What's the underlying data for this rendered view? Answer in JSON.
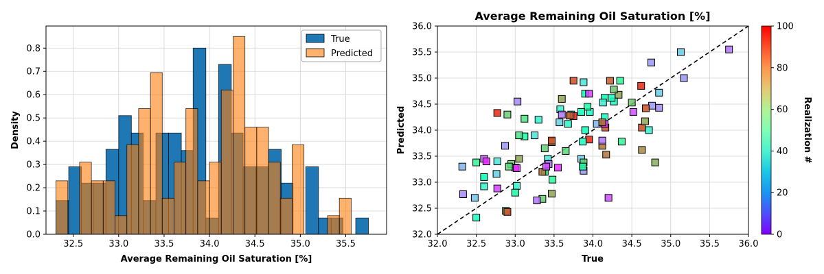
{
  "chart_data": [
    {
      "type": "histogram",
      "xlabel": "Average Remaining Oil Saturation [%]",
      "ylabel": "Density",
      "xlim": [
        32.2,
        35.95
      ],
      "ylim": [
        0,
        0.895
      ],
      "xticks": [
        "32.5",
        "33.0",
        "33.5",
        "34.0",
        "34.5",
        "35.0",
        "35.5"
      ],
      "yticks": [
        "0.0",
        "0.1",
        "0.2",
        "0.3",
        "0.4",
        "0.5",
        "0.6",
        "0.7",
        "0.8"
      ],
      "grid": true,
      "legend_position": "upper right",
      "series": [
        {
          "name": "True",
          "color": "#1f77b4",
          "bins": [
            [
              32.31,
              32.45,
              0.145
            ],
            [
              32.45,
              32.59,
              0.29
            ],
            [
              32.59,
              32.72,
              0.22
            ],
            [
              32.72,
              32.86,
              0.22
            ],
            [
              32.86,
              33.0,
              0.365
            ],
            [
              33.0,
              33.14,
              0.51
            ],
            [
              33.14,
              33.27,
              0.435
            ],
            [
              33.27,
              33.41,
              0.145
            ],
            [
              33.41,
              33.55,
              0.435
            ],
            [
              33.55,
              33.69,
              0.435
            ],
            [
              33.69,
              33.82,
              0.36
            ],
            [
              33.82,
              33.96,
              0.8
            ],
            [
              33.96,
              34.1,
              0.07
            ],
            [
              34.1,
              34.24,
              0.73
            ],
            [
              34.24,
              34.37,
              0.435
            ],
            [
              34.37,
              34.51,
              0.29
            ],
            [
              34.51,
              34.65,
              0.29
            ],
            [
              34.65,
              34.79,
              0.365
            ],
            [
              34.79,
              34.92,
              0.22
            ],
            [
              34.92,
              35.06,
              0.0
            ],
            [
              35.06,
              35.2,
              0.29
            ],
            [
              35.2,
              35.34,
              0.07
            ],
            [
              35.34,
              35.47,
              0.07
            ],
            [
              35.47,
              35.61,
              0.0
            ],
            [
              35.61,
              35.75,
              0.07
            ]
          ]
        },
        {
          "name": "Predicted",
          "color": "#ff7f0e",
          "bins": [
            [
              32.31,
              32.44,
              0.23
            ],
            [
              32.44,
              32.57,
              0.0
            ],
            [
              32.57,
              32.7,
              0.31
            ],
            [
              32.7,
              32.83,
              0.23
            ],
            [
              32.83,
              32.96,
              0.23
            ],
            [
              32.96,
              33.09,
              0.08
            ],
            [
              33.09,
              33.22,
              0.385
            ],
            [
              33.22,
              33.35,
              0.54
            ],
            [
              33.35,
              33.48,
              0.695
            ],
            [
              33.48,
              33.61,
              0.155
            ],
            [
              33.61,
              33.74,
              0.31
            ],
            [
              33.74,
              33.87,
              0.54
            ],
            [
              33.87,
              34.0,
              0.23
            ],
            [
              34.0,
              34.13,
              0.31
            ],
            [
              34.13,
              34.26,
              0.62
            ],
            [
              34.26,
              34.39,
              0.85
            ],
            [
              34.39,
              34.52,
              0.46
            ],
            [
              34.52,
              34.65,
              0.46
            ],
            [
              34.65,
              34.78,
              0.31
            ],
            [
              34.78,
              34.91,
              0.155
            ],
            [
              34.91,
              35.04,
              0.385
            ],
            [
              35.04,
              35.17,
              0.0
            ],
            [
              35.17,
              35.3,
              0.0
            ],
            [
              35.3,
              35.43,
              0.08
            ],
            [
              35.43,
              35.56,
              0.155
            ]
          ]
        }
      ]
    },
    {
      "type": "scatter",
      "title": "Average Remaining Oil Saturation [%]",
      "xlabel": "True",
      "ylabel": "Predicted",
      "xlim": [
        32.0,
        36.0
      ],
      "ylim": [
        32.0,
        36.0
      ],
      "xticks": [
        "32.0",
        "32.5",
        "33.0",
        "33.5",
        "34.0",
        "34.5",
        "35.0",
        "35.5",
        "36.0"
      ],
      "yticks": [
        "32.0",
        "32.5",
        "33.0",
        "33.5",
        "34.0",
        "34.5",
        "35.0",
        "35.5",
        "36.0"
      ],
      "grid": true,
      "reference_line": "y = x",
      "colorbar": {
        "label": "Realization #",
        "range": [
          0,
          100
        ],
        "ticks": [
          "0",
          "20",
          "40",
          "60",
          "80",
          "100"
        ],
        "colormap": "rainbow"
      },
      "points": [
        [
          35.75,
          35.55,
          15
        ],
        [
          35.13,
          35.5,
          30
        ],
        [
          34.75,
          35.3,
          20
        ],
        [
          35.17,
          35.0,
          20
        ],
        [
          34.85,
          34.72,
          30
        ],
        [
          34.85,
          34.43,
          18
        ],
        [
          34.76,
          34.47,
          20
        ],
        [
          34.52,
          34.35,
          10
        ],
        [
          34.62,
          34.85,
          95
        ],
        [
          34.68,
          34.42,
          90
        ],
        [
          34.72,
          34.0,
          40
        ],
        [
          34.63,
          34.05,
          90
        ],
        [
          34.67,
          34.17,
          78
        ],
        [
          34.63,
          33.62,
          82
        ],
        [
          34.8,
          33.38,
          76
        ],
        [
          34.5,
          34.53,
          72
        ],
        [
          34.35,
          34.95,
          60
        ],
        [
          34.33,
          34.68,
          78
        ],
        [
          34.27,
          34.78,
          72
        ],
        [
          34.27,
          34.55,
          45
        ],
        [
          34.24,
          34.62,
          45
        ],
        [
          34.22,
          34.95,
          88
        ],
        [
          34.15,
          34.62,
          50
        ],
        [
          34.15,
          34.25,
          45
        ],
        [
          34.13,
          34.53,
          38
        ],
        [
          34.16,
          34.05,
          90
        ],
        [
          34.12,
          33.7,
          85
        ],
        [
          34.17,
          33.53,
          85
        ],
        [
          34.12,
          33.8,
          15
        ],
        [
          34.15,
          34.12,
          5
        ],
        [
          34.2,
          32.7,
          10
        ],
        [
          34.05,
          34.12,
          25
        ],
        [
          33.96,
          34.35,
          45
        ],
        [
          33.93,
          34.45,
          55
        ],
        [
          33.9,
          34.7,
          48
        ],
        [
          33.95,
          34.7,
          8
        ],
        [
          33.88,
          34.92,
          35
        ],
        [
          33.75,
          34.95,
          90
        ],
        [
          33.72,
          34.3,
          42
        ],
        [
          33.75,
          34.27,
          95
        ],
        [
          33.7,
          34.28,
          88
        ],
        [
          33.68,
          34.12,
          42
        ],
        [
          33.6,
          34.6,
          78
        ],
        [
          33.58,
          34.4,
          40
        ],
        [
          33.6,
          34.3,
          15
        ],
        [
          33.57,
          34.15,
          30
        ],
        [
          33.85,
          34.35,
          48
        ],
        [
          34.37,
          33.78,
          60
        ],
        [
          33.95,
          33.82,
          95
        ],
        [
          33.87,
          33.78,
          45
        ],
        [
          33.85,
          33.45,
          30
        ],
        [
          33.88,
          33.38,
          70
        ],
        [
          33.88,
          33.22,
          20
        ],
        [
          33.87,
          33.3,
          55
        ],
        [
          33.65,
          33.6,
          68
        ],
        [
          33.47,
          33.77,
          82
        ],
        [
          33.47,
          33.8,
          90
        ],
        [
          33.38,
          33.65,
          70
        ],
        [
          33.42,
          33.45,
          35
        ],
        [
          33.43,
          33.35,
          15
        ],
        [
          33.38,
          33.2,
          60
        ],
        [
          33.35,
          33.2,
          85
        ],
        [
          33.4,
          33.3,
          10
        ],
        [
          33.48,
          33.05,
          58
        ],
        [
          33.47,
          32.78,
          78
        ],
        [
          33.35,
          32.68,
          70
        ],
        [
          33.28,
          32.65,
          15
        ],
        [
          33.25,
          33.9,
          35
        ],
        [
          33.12,
          33.88,
          55
        ],
        [
          33.05,
          33.9,
          65
        ],
        [
          33.12,
          34.22,
          65
        ],
        [
          33.3,
          34.2,
          40
        ],
        [
          33.03,
          34.55,
          18
        ],
        [
          32.9,
          34.3,
          70
        ],
        [
          32.77,
          34.33,
          95
        ],
        [
          32.87,
          33.7,
          20
        ],
        [
          33.05,
          33.45,
          78
        ],
        [
          32.95,
          33.35,
          72
        ],
        [
          33.0,
          33.28,
          15
        ],
        [
          33.02,
          33.27,
          5
        ],
        [
          32.92,
          33.3,
          68
        ],
        [
          33.02,
          32.93,
          40
        ],
        [
          33.0,
          32.8,
          55
        ],
        [
          32.88,
          32.45,
          70
        ],
        [
          32.9,
          32.43,
          90
        ],
        [
          32.77,
          33.4,
          35
        ],
        [
          32.76,
          33.16,
          30
        ],
        [
          32.77,
          32.88,
          8
        ],
        [
          32.6,
          33.45,
          12
        ],
        [
          32.63,
          33.4,
          5
        ],
        [
          32.5,
          33.38,
          60
        ],
        [
          32.6,
          33.1,
          50
        ],
        [
          32.6,
          32.92,
          40
        ],
        [
          32.32,
          33.3,
          25
        ],
        [
          32.33,
          32.77,
          18
        ],
        [
          32.48,
          32.7,
          28
        ],
        [
          32.5,
          32.32,
          45
        ],
        [
          33.55,
          33.28,
          5
        ],
        [
          34.12,
          34.15,
          85
        ],
        [
          33.9,
          34.0,
          48
        ]
      ]
    }
  ],
  "legend": {
    "items": [
      "True",
      "Predicted"
    ]
  }
}
